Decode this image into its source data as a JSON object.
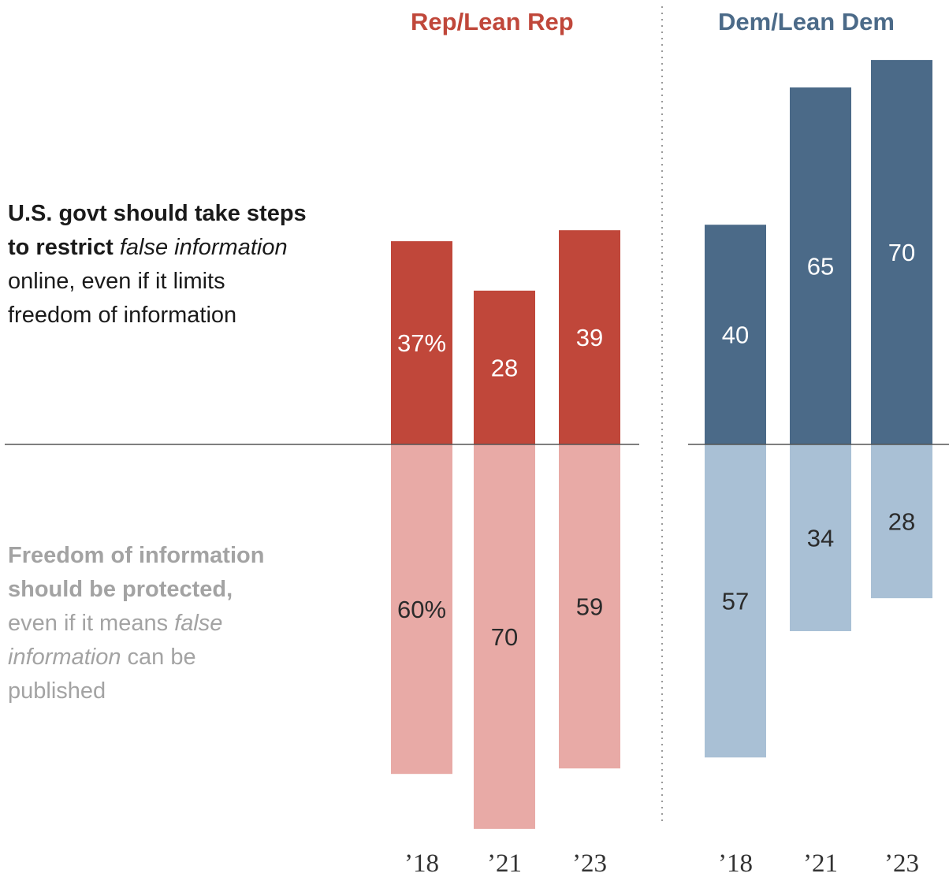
{
  "chart_data": {
    "type": "bar",
    "categories": [
      "’18",
      "’21",
      "’23"
    ],
    "groups": [
      {
        "name": "Rep/Lean Rep",
        "color": "#c0473a",
        "series": [
          {
            "name": "U.S. govt should take steps to restrict false information online, even if it limits freedom of information",
            "values": [
              37,
              28,
              39
            ],
            "labels": [
              "37%",
              "28",
              "39"
            ],
            "color": "#c0473a",
            "direction": "up"
          },
          {
            "name": "Freedom of information should be protected, even if it means false information can be published",
            "values": [
              60,
              70,
              59
            ],
            "labels": [
              "60%",
              "70",
              "59"
            ],
            "color": "#e8aaa6",
            "direction": "down"
          }
        ]
      },
      {
        "name": "Dem/Lean Dem",
        "color": "#4b6a88",
        "series": [
          {
            "name": "U.S. govt should take steps to restrict false information online, even if it limits freedom of information",
            "values": [
              40,
              65,
              70
            ],
            "labels": [
              "40",
              "65",
              "70"
            ],
            "color": "#4b6a88",
            "direction": "up"
          },
          {
            "name": "Freedom of information should be protected, even if it means false information can be published",
            "values": [
              57,
              34,
              28
            ],
            "labels": [
              "57",
              "34",
              "28"
            ],
            "color": "#a9c0d5",
            "direction": "down"
          }
        ]
      }
    ],
    "legend": {
      "top": {
        "bold": "U.S. govt should take steps",
        "bold2": "to restrict",
        "italic": "false information",
        "line3": "online, even if it limits",
        "line4": "freedom of information"
      },
      "bottom": {
        "line1": "Freedom of information",
        "line2": "should be protected,",
        "line3a": "even if it means",
        "line3b": "false",
        "line4a": "information",
        "line4b": "can be",
        "line5": "published"
      }
    }
  }
}
